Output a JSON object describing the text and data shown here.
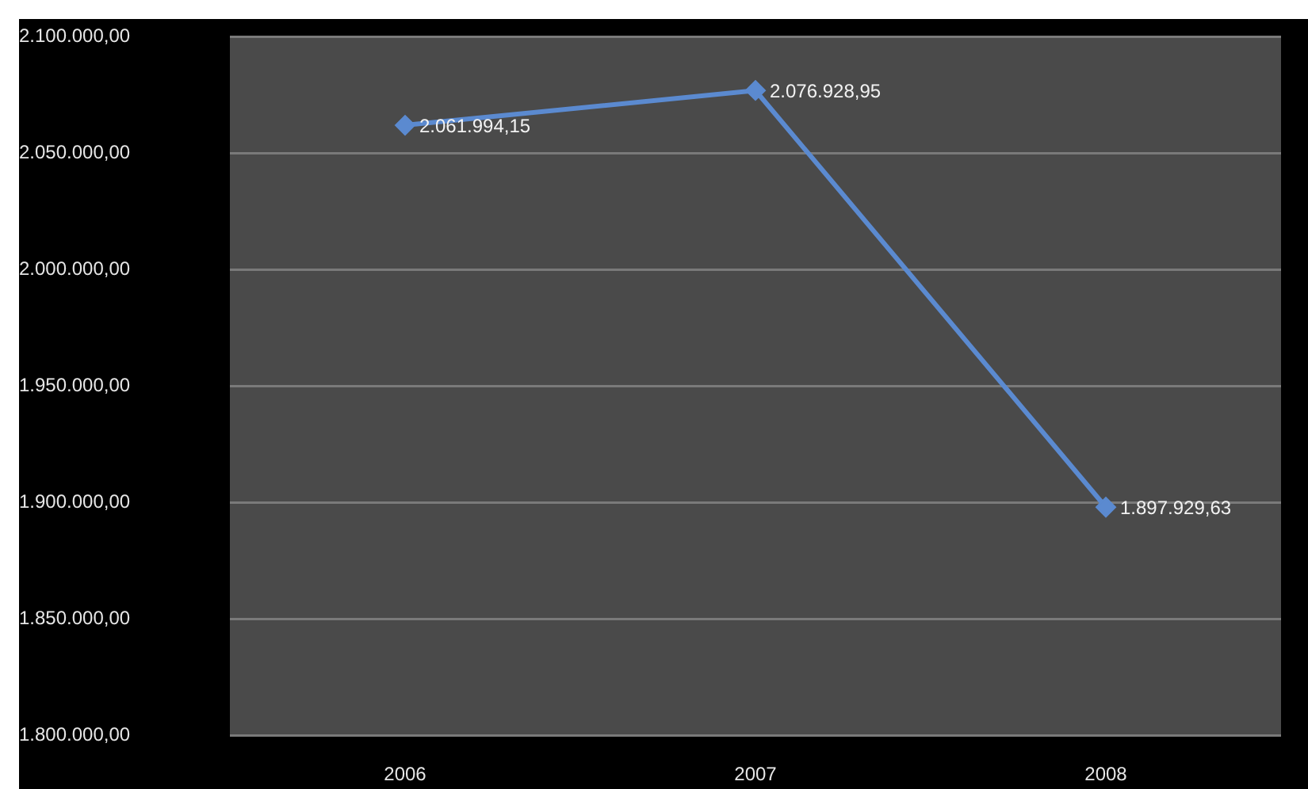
{
  "chart_data": {
    "type": "line",
    "categories": [
      "2006",
      "2007",
      "2008"
    ],
    "series": [
      {
        "color": "#5b8ad0",
        "values": [
          2061994.15,
          2076928.95,
          1897929.63
        ],
        "value_labels": [
          "2.061.994,15",
          "2.076.928,95",
          "1.897.929,63"
        ]
      }
    ],
    "ylim": [
      1800000,
      2100000
    ],
    "yticks": [
      {
        "value": 1800000,
        "label": "1.800.000,00"
      },
      {
        "value": 1850000,
        "label": "1.850.000,00"
      },
      {
        "value": 1900000,
        "label": "1.900.000,00"
      },
      {
        "value": 1950000,
        "label": "1.950.000,00"
      },
      {
        "value": 2000000,
        "label": "2.000.000,00"
      },
      {
        "value": 2050000,
        "label": "2.050.000,00"
      },
      {
        "value": 2100000,
        "label": "2.100.000,00"
      }
    ],
    "grid": "y",
    "legend": false,
    "marker": "diamond",
    "line_style": "solid"
  }
}
